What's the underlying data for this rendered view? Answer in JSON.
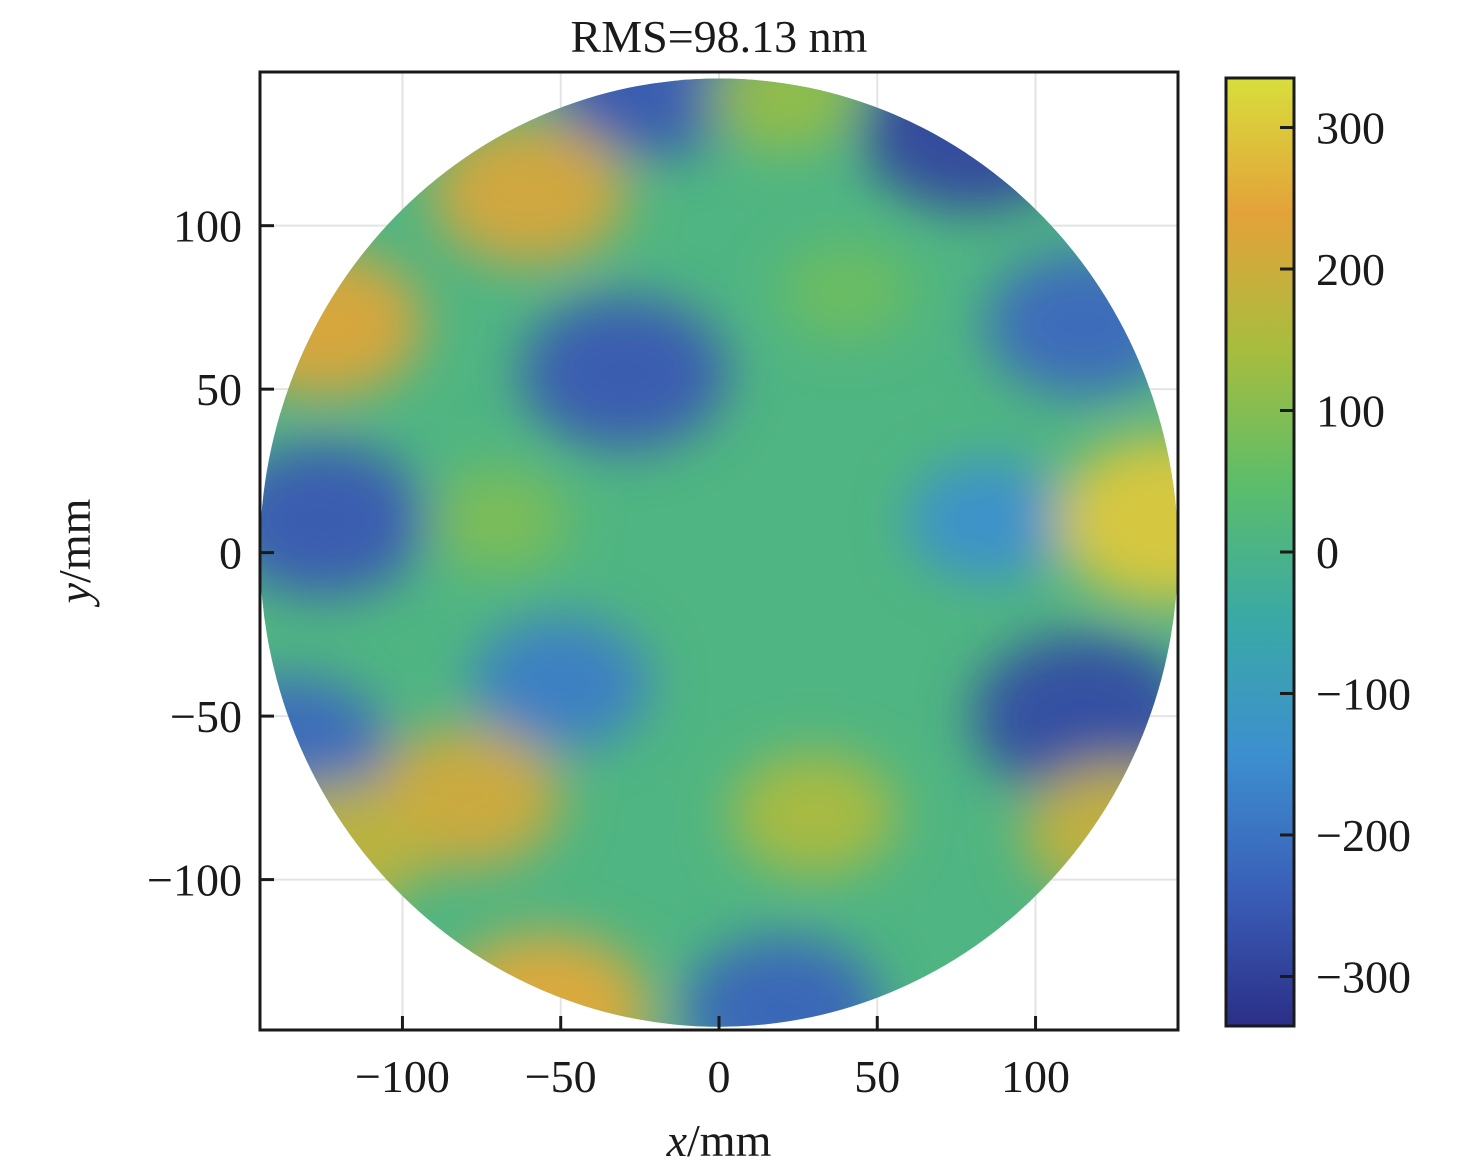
{
  "chart_data": {
    "type": "heatmap",
    "title": "RMS=98.13 nm",
    "xlabel_var": "x",
    "xlabel_unit": "/mm",
    "ylabel_var": "y",
    "ylabel_unit": "/mm",
    "xlim": [
      -145,
      145
    ],
    "ylim": [
      -146,
      147
    ],
    "xticks": [
      {
        "value": -100,
        "label": "−100"
      },
      {
        "value": -50,
        "label": "−50"
      },
      {
        "value": 0,
        "label": "0"
      },
      {
        "value": 50,
        "label": "50"
      },
      {
        "value": 100,
        "label": "100"
      }
    ],
    "yticks": [
      {
        "value": 100,
        "label": "100"
      },
      {
        "value": 50,
        "label": "50"
      },
      {
        "value": 0,
        "label": "0"
      },
      {
        "value": -50,
        "label": "−50"
      },
      {
        "value": -100,
        "label": "−100"
      }
    ],
    "grid": true,
    "aperture": "circular, radius ≈ 145 mm",
    "colorbar": {
      "range": [
        -335,
        335
      ],
      "ticks": [
        {
          "value": 300,
          "label": "300"
        },
        {
          "value": 200,
          "label": "200"
        },
        {
          "value": 100,
          "label": "100"
        },
        {
          "value": 0,
          "label": "0"
        },
        {
          "value": -100,
          "label": "−100"
        },
        {
          "value": -200,
          "label": "−200"
        },
        {
          "value": -300,
          "label": "−300"
        }
      ],
      "colormap": [
        "#2b2f87",
        "#3a5fb8",
        "#3d8fcf",
        "#3aa9a6",
        "#5cbd6a",
        "#a8bd3e",
        "#e3a23a",
        "#d8de3c"
      ]
    },
    "features": [
      {
        "x": -30,
        "y": 55,
        "value": -250
      },
      {
        "x": -125,
        "y": 10,
        "value": -250
      },
      {
        "x": -50,
        "y": -40,
        "value": -180
      },
      {
        "x": 115,
        "y": -50,
        "value": -280
      },
      {
        "x": 115,
        "y": 70,
        "value": -220
      },
      {
        "x": 80,
        "y": 130,
        "value": -290
      },
      {
        "x": -20,
        "y": 145,
        "value": -250
      },
      {
        "x": -135,
        "y": -60,
        "value": -220
      },
      {
        "x": 20,
        "y": -140,
        "value": -230
      },
      {
        "x": 85,
        "y": 10,
        "value": -140
      },
      {
        "x": -60,
        "y": 110,
        "value": 220
      },
      {
        "x": -125,
        "y": 70,
        "value": 230
      },
      {
        "x": -80,
        "y": -75,
        "value": 210
      },
      {
        "x": 30,
        "y": -80,
        "value": 150
      },
      {
        "x": 142,
        "y": 10,
        "value": 300
      },
      {
        "x": -55,
        "y": -140,
        "value": 250
      },
      {
        "x": -120,
        "y": -90,
        "value": 180
      },
      {
        "x": 20,
        "y": 140,
        "value": 120
      },
      {
        "x": 125,
        "y": -85,
        "value": 190
      },
      {
        "x": -70,
        "y": 10,
        "value": 90
      },
      {
        "x": 40,
        "y": 80,
        "value": 70
      }
    ]
  }
}
